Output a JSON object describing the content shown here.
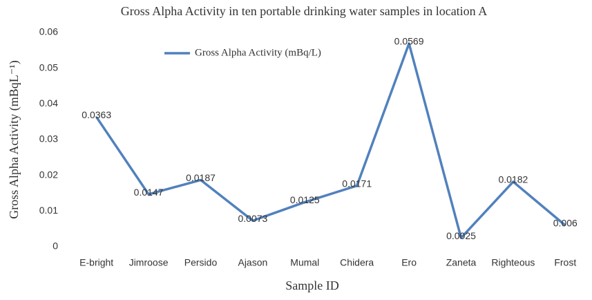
{
  "chart_data": {
    "type": "line",
    "title": "Gross Alpha Activity in ten portable drinking water samples in location A",
    "x_label": "Sample ID",
    "y_label": "Gross Alpha Activity (mBqL⁻¹)",
    "categories": [
      "E-bright",
      "Jimroose",
      "Persido",
      "Ajason",
      "Mumal",
      "Chidera",
      "Ero",
      "Zaneta",
      "Righteous",
      "Frost"
    ],
    "series": [
      {
        "name": "Gross Alpha Activity (mBq/L)",
        "color": "#5181bd",
        "values": [
          0.0363,
          0.0147,
          0.0187,
          0.0073,
          0.0125,
          0.0171,
          0.0569,
          0.0025,
          0.0182,
          0.006
        ]
      }
    ],
    "ylim": [
      0,
      0.06
    ],
    "yticks": [
      0,
      0.01,
      0.02,
      0.03,
      0.04,
      0.05,
      0.06
    ],
    "grid": false,
    "legend": "top-left"
  }
}
